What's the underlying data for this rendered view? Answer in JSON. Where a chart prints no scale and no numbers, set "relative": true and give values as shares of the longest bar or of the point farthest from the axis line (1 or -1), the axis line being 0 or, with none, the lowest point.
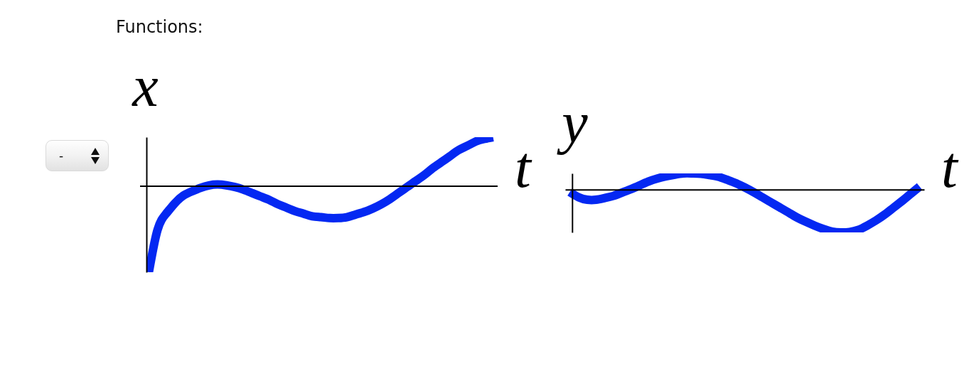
{
  "chart_data": [
    {
      "type": "line",
      "title": "Functions:",
      "annotations": [
        "-"
      ],
      "xlabel": "t",
      "ylabel": "x",
      "relative": true,
      "categories": [
        null,
        null,
        null,
        null,
        null,
        null,
        null,
        null,
        null,
        null,
        null,
        null,
        null,
        null,
        null,
        null,
        null,
        null,
        null,
        null,
        null,
        null,
        null,
        null,
        null,
        null,
        null,
        null,
        null,
        null,
        null,
        null,
        null,
        null,
        null,
        null,
        null,
        null,
        null,
        null,
        null
      ],
      "series": [
        {
          "color": "#0428f2",
          "values": [
            -1,
            -0.51,
            -0.32,
            -0.2,
            -0.11,
            -0.06,
            -0.02,
            0.01,
            0.02,
            0.01,
            -0.01,
            -0.04,
            -0.08,
            -0.12,
            -0.16,
            -0.21,
            -0.25,
            -0.29,
            -0.32,
            -0.35,
            -0.36,
            -0.37,
            -0.37,
            -0.36,
            -0.33,
            -0.3,
            -0.26,
            -0.21,
            -0.15,
            -0.08,
            -0.01,
            0.06,
            0.13,
            0.21,
            0.28,
            0.35,
            0.42,
            0.47,
            0.52,
            0.55,
            0.57
          ]
        }
      ]
    },
    {
      "type": "line",
      "xlabel": "t",
      "ylabel": "y",
      "relative": true,
      "categories": [
        null,
        null,
        null,
        null,
        null,
        null,
        null,
        null,
        null,
        null,
        null,
        null,
        null,
        null,
        null,
        null,
        null,
        null,
        null,
        null,
        null,
        null,
        null,
        null,
        null,
        null,
        null,
        null,
        null,
        null,
        null,
        null,
        null,
        null,
        null,
        null,
        null,
        null,
        null,
        null,
        null
      ],
      "series": [
        {
          "color": "#0428f2",
          "values": [
            -0.05,
            -0.17,
            -0.23,
            -0.23,
            -0.19,
            -0.14,
            -0.06,
            0.02,
            0.11,
            0.2,
            0.27,
            0.32,
            0.36,
            0.39,
            0.39,
            0.38,
            0.35,
            0.31,
            0.24,
            0.16,
            0.06,
            -0.05,
            -0.17,
            -0.29,
            -0.41,
            -0.53,
            -0.65,
            -0.75,
            -0.84,
            -0.92,
            -0.98,
            -1,
            -0.99,
            -0.94,
            -0.84,
            -0.72,
            -0.58,
            -0.42,
            -0.26,
            -0.09,
            0.08
          ]
        }
      ]
    }
  ]
}
